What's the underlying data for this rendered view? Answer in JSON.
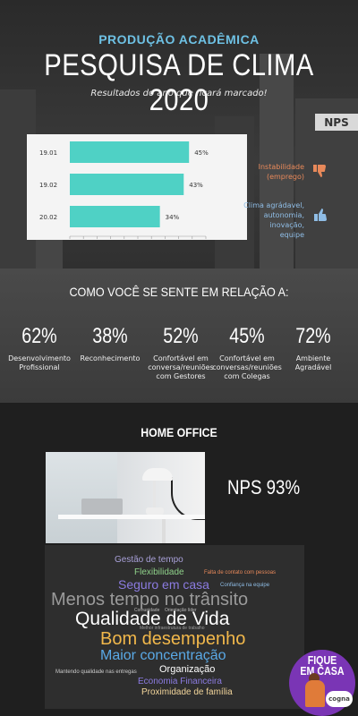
{
  "header": {
    "subtitle": "PRODUÇÃO ACADÊMICA",
    "title": "PESQUISA DE CLIMA 2020",
    "tagline": "Resultados do ano que ficará marcado!"
  },
  "nps_badge": "NPS",
  "legend": {
    "negative": [
      "Instabilidade",
      "(emprego)"
    ],
    "positive": [
      "Clima agrádavel,",
      "autonomia, inovação,",
      "equipe"
    ]
  },
  "colors": {
    "bar": "#4fd1c5",
    "negative": "#e8895a",
    "positive": "#8fbde6",
    "accent_title": "#6ec1e4"
  },
  "chart_data": {
    "type": "bar",
    "orientation": "horizontal",
    "categories": [
      "19.01",
      "19.02",
      "20.02"
    ],
    "values": [
      45,
      43,
      34
    ],
    "value_labels": [
      "45%",
      "43%",
      "34%"
    ],
    "xlim": [
      0,
      50
    ]
  },
  "section2": {
    "title": "COMO VOCÊ SE SENTE EM RELAÇÃO A:",
    "stats": [
      {
        "pct": "62%",
        "label": [
          "Desenvolvimento",
          "Profissional"
        ]
      },
      {
        "pct": "38%",
        "label": [
          "Reconhecimento"
        ]
      },
      {
        "pct": "52%",
        "label": [
          "Confortável  em",
          "conversa/reuniões",
          "com Gestores"
        ]
      },
      {
        "pct": "45%",
        "label": [
          "Confortável em",
          "conversas/reuniões",
          "com Colegas"
        ]
      },
      {
        "pct": "72%",
        "label": [
          "Ambiente",
          "Agradável"
        ]
      }
    ]
  },
  "home_office": {
    "title": "HOME OFFICE",
    "nps": "NPS 93%"
  },
  "word_cloud": [
    {
      "text": "Gestão de tempo",
      "color": "#a8a0d8"
    },
    {
      "text": "Flexibilidade",
      "color": "#8fd18a"
    },
    {
      "text": "Falta de contato com pessoas",
      "color": "#e8895a"
    },
    {
      "text": "Seguro em casa",
      "color": "#8b7be0"
    },
    {
      "text": "Confiança na equipe",
      "color": "#8fbde6"
    },
    {
      "text": "Menos tempo no trânsito",
      "color": "#9a9a9a"
    },
    {
      "text": "Qualidade de Vida",
      "color": "#ffffff"
    },
    {
      "text": "Bom desempenho",
      "color": "#f2b84b"
    },
    {
      "text": "Maior concentração",
      "color": "#5aa9e6"
    },
    {
      "text": "Organização",
      "color": "#ffffff"
    },
    {
      "text": "Mantendo qualidade nas entregas",
      "color": "#cccccc"
    },
    {
      "text": "Economia Financeira",
      "color": "#8b7be0"
    },
    {
      "text": "Proximidade de família",
      "color": "#f2d59b"
    },
    {
      "text": "Comunidade",
      "color": "#bbbbbb"
    },
    {
      "text": "Orientação líder",
      "color": "#bbbbbb"
    },
    {
      "text": "Melhor infraestrutura de trabalho",
      "color": "#999999"
    }
  ],
  "badge": {
    "fique": [
      "FIQUE",
      "EM CASA"
    ],
    "brand": "cogna"
  }
}
